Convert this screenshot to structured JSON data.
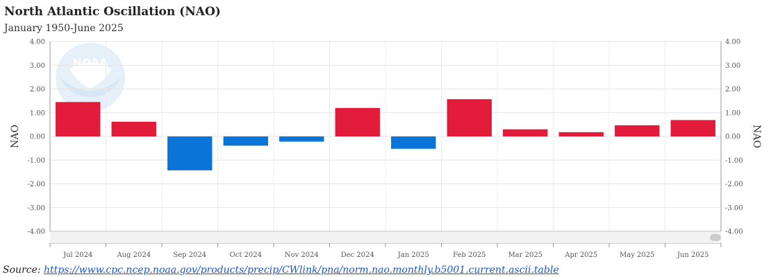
{
  "chart_data": {
    "type": "bar",
    "title": "North Atlantic Oscillation (NAO)",
    "subtitle": "January 1950-June 2025",
    "ylabel": "NAO",
    "ylabel_right": "NAO",
    "ylim": [
      -4,
      4
    ],
    "yticks": [
      "4.00",
      "3.00",
      "2.00",
      "1.00",
      "0.00",
      "-1.00",
      "-2.00",
      "-3.00",
      "-4.00"
    ],
    "categories": [
      "Jul 2024",
      "Aug 2024",
      "Sep 2024",
      "Oct 2024",
      "Nov 2024",
      "Dec 2024",
      "Jan 2025",
      "Feb 2025",
      "Mar 2025",
      "Apr 2025",
      "May 2025",
      "Jun 2025"
    ],
    "values": [
      1.45,
      0.62,
      -1.43,
      -0.39,
      -0.22,
      1.2,
      -0.52,
      1.57,
      0.3,
      0.18,
      0.47,
      0.69
    ],
    "positive_color": "#e31b3b",
    "negative_color": "#0a74d8",
    "grid": true,
    "legend": "none"
  },
  "source": {
    "label": "Source: ",
    "url": "https://www.cpc.ncep.noaa.gov/products/precip/CWlink/pna/norm.nao.monthly.b5001.current.ascii.table"
  },
  "logo": {
    "text": "NOAA"
  }
}
